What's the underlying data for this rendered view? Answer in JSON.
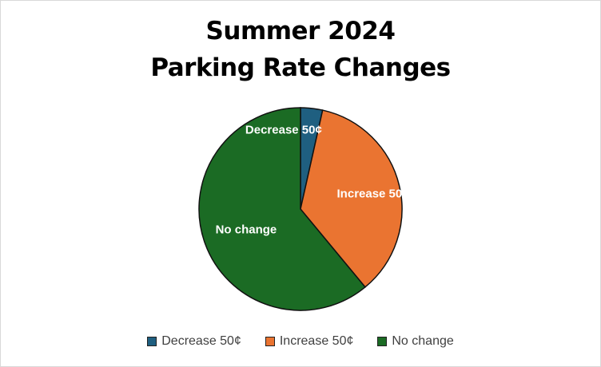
{
  "chart_data": {
    "type": "pie",
    "title_lines": [
      "Summer 2024",
      "Parking Rate Changes"
    ],
    "categories": [
      "Decrease 50¢",
      "Increase 50¢",
      "No change"
    ],
    "values": [
      3.5,
      35.5,
      61.0
    ],
    "colors": [
      "#1f5f80",
      "#ea7431",
      "#1b6b24"
    ],
    "start_angle_deg": 0,
    "direction": "clockwise",
    "data_labels": [
      "Decrease 50¢",
      "Increase 50¢",
      "No change"
    ],
    "legend_position": "bottom"
  }
}
